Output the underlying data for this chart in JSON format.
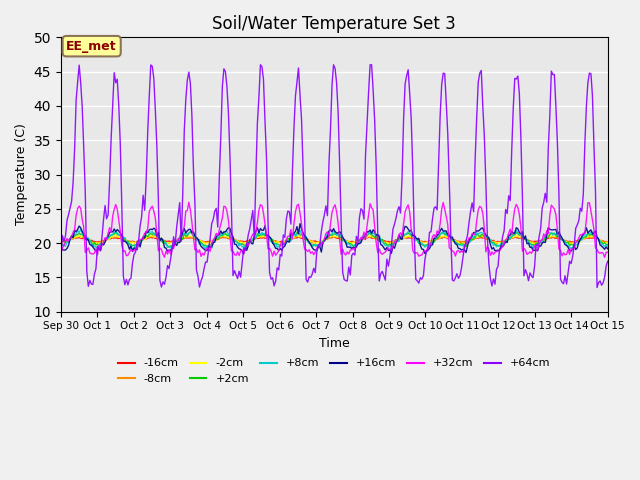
{
  "title": "Soil/Water Temperature Set 3",
  "xlabel": "Time",
  "ylabel": "Temperature (C)",
  "ylim": [
    10,
    50
  ],
  "yticks": [
    10,
    15,
    20,
    25,
    30,
    35,
    40,
    45,
    50
  ],
  "x_labels": [
    "Sep 30",
    "Oct 1",
    "Oct 2",
    "Oct 3",
    "Oct 4",
    "Oct 5",
    "Oct 6",
    "Oct 7",
    "Oct 8",
    "Oct 9",
    "Oct 10",
    "Oct 11",
    "Oct 12",
    "Oct 13",
    "Oct 14",
    "Oct 15"
  ],
  "annotation_text": "EE_met",
  "annotation_color": "#8B0000",
  "annotation_bg": "#FFFF99",
  "series": [
    {
      "label": "-16cm",
      "color": "#FF0000"
    },
    {
      "label": "-8cm",
      "color": "#FF8C00"
    },
    {
      "label": "-2cm",
      "color": "#FFFF00"
    },
    {
      "label": "+2cm",
      "color": "#00CC00"
    },
    {
      "label": "+8cm",
      "color": "#00CCCC"
    },
    {
      "label": "+16cm",
      "color": "#00008B"
    },
    {
      "label": "+32cm",
      "color": "#FF00FF"
    },
    {
      "label": "+64cm",
      "color": "#8B00FF"
    }
  ],
  "bg_color": "#E8E8E8",
  "grid_color": "#FFFFFF"
}
